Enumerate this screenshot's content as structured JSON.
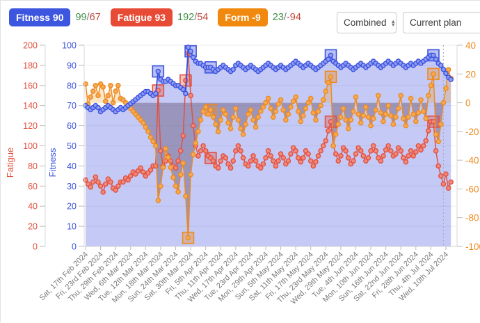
{
  "header": {
    "badges": [
      {
        "label": "Fitness 90",
        "color": "#3d56e0",
        "range_max": "99",
        "range_sep": "/",
        "range_min": "67"
      },
      {
        "label": "Fatigue 93",
        "color": "#e84b35",
        "range_max": "192",
        "range_sep": "/",
        "range_min": "54"
      },
      {
        "label": "Form -9",
        "color": "#f0890e",
        "range_max": "23",
        "range_sep": "/",
        "range_min": "-94"
      }
    ],
    "combined_select": "Combined",
    "plan_select": "Current plan"
  },
  "chart_data": {
    "type": "line",
    "title": "",
    "x_label_step": 6,
    "x_labels": [
      "Sat, 17th Feb 2024",
      "Fri, 23rd Feb 2024",
      "Thu, 29th Feb 2024",
      "Wed, 6th Mar 2024",
      "Tue, 12th Mar 2024",
      "Mon, 18th Mar 2024",
      "Sun, 24th Mar 2024",
      "Sat, 30th Mar 2024",
      "Fri, 5th Apr 2024",
      "Thu, 11th Apr 2024",
      "Wed, 17th Apr 2024",
      "Tue, 23rd Apr 2024",
      "Mon, 29th Apr 2024",
      "Sun, 5th May 2024",
      "Sat, 11th May 2024",
      "Fri, 17th May 2024",
      "Thu, 23rd May 2024",
      "Wed, 29th May 2024",
      "Tue, 4th Jun 2024",
      "Mon, 10th Jun 2024",
      "Sun, 16th Jun 2024",
      "Sat, 22nd Jun 2024",
      "Fri, 28th Jun 2024",
      "Thu, 4th Jul 2024",
      "Wed, 10th Jul 2024"
    ],
    "axes": {
      "fatigue": {
        "title": "Fatigue",
        "min": 0,
        "max": 200,
        "tick_step": 20,
        "color": "#e2503f",
        "position": "outer-left"
      },
      "fitness": {
        "title": "Fitness",
        "min": 0,
        "max": 100,
        "tick_step": 10,
        "color": "#3b52e0",
        "position": "left"
      },
      "form": {
        "title": "",
        "min": -100,
        "max": 40,
        "tick_step": 20,
        "color": "#ee8a1f",
        "position": "right"
      }
    },
    "grid": true,
    "today_index": 143,
    "fills": {
      "fitness_area": "rgba(86,103,226,0.35)",
      "form_positive": "rgba(243,165,49,0.28)",
      "form_negative": "rgba(85,62,96,0.38)"
    },
    "series": [
      {
        "id": "fitness",
        "name": "Fitness",
        "axis": "fitness",
        "color": "#3b52e0",
        "marker_fill": "#8f9cf0",
        "values": [
          70,
          69,
          68,
          69,
          70,
          69,
          67,
          68,
          69,
          70,
          69,
          68,
          67,
          68,
          69,
          68,
          69,
          70,
          71,
          72,
          73,
          74,
          75,
          76,
          77,
          77,
          76,
          75,
          76,
          87,
          83,
          82,
          82,
          83,
          82,
          81,
          80,
          80,
          79,
          78,
          76,
          99,
          97,
          94,
          92,
          91,
          91,
          90,
          89,
          89,
          89,
          88,
          87,
          88,
          89,
          90,
          89,
          88,
          87,
          88,
          90,
          91,
          90,
          89,
          88,
          89,
          90,
          89,
          88,
          87,
          88,
          89,
          90,
          91,
          90,
          89,
          88,
          89,
          90,
          89,
          88,
          89,
          90,
          91,
          92,
          91,
          90,
          89,
          90,
          91,
          90,
          89,
          88,
          89,
          90,
          91,
          92,
          93,
          95,
          92,
          91,
          90,
          89,
          90,
          91,
          90,
          89,
          88,
          89,
          90,
          91,
          90,
          89,
          90,
          91,
          92,
          91,
          90,
          89,
          90,
          91,
          92,
          91,
          90,
          91,
          92,
          91,
          90,
          89,
          90,
          91,
          90,
          91,
          92,
          91,
          92,
          93,
          94,
          95,
          95,
          93,
          91,
          90,
          88,
          86,
          84,
          83
        ]
      },
      {
        "id": "fatigue",
        "name": "Fatigue",
        "axis": "fatigue",
        "color": "#e2503f",
        "marker_fill": "#ef8a7c",
        "values": [
          66,
          62,
          59,
          64,
          69,
          64,
          60,
          54,
          62,
          67,
          64,
          58,
          56,
          60,
          64,
          64,
          68,
          66,
          70,
          74,
          72,
          75,
          78,
          74,
          70,
          73,
          76,
          80,
          80,
          155,
          95,
          80,
          85,
          90,
          85,
          80,
          78,
          85,
          95,
          110,
          165,
          192,
          150,
          120,
          100,
          90,
          95,
          100,
          95,
          90,
          88,
          85,
          80,
          78,
          85,
          90,
          88,
          82,
          78,
          85,
          95,
          100,
          95,
          88,
          82,
          80,
          85,
          90,
          85,
          80,
          78,
          82,
          88,
          95,
          90,
          85,
          80,
          85,
          92,
          88,
          82,
          85,
          92,
          98,
          95,
          88,
          84,
          88,
          95,
          92,
          85,
          80,
          84,
          90,
          95,
          100,
          105,
          115,
          124,
          100,
          92,
          85,
          90,
          98,
          95,
          88,
          82,
          85,
          92,
          98,
          95,
          90,
          85,
          88,
          95,
          100,
          95,
          88,
          85,
          90,
          96,
          100,
          95,
          90,
          92,
          98,
          95,
          88,
          84,
          90,
          95,
          90,
          94,
          100,
          96,
          100,
          105,
          115,
          124,
          124,
          95,
          80,
          70,
          62,
          72,
          58,
          64
        ]
      },
      {
        "id": "form",
        "name": "Form",
        "axis": "form",
        "color": "#ee8a1f",
        "marker_fill": "#f5aa56",
        "values": [
          13,
          -1,
          4,
          8,
          12,
          5,
          13,
          11,
          1,
          5,
          12,
          0,
          8,
          12,
          3,
          2,
          0,
          -2,
          -4,
          -6,
          -8,
          -10,
          -12,
          -14,
          -17,
          -20,
          -24,
          -27,
          -30,
          -68,
          -58,
          -45,
          -32,
          -38,
          -45,
          -52,
          -58,
          -62,
          -50,
          -42,
          -65,
          -94,
          -50,
          -36,
          -28,
          -20,
          -12,
          -6,
          -3,
          -8,
          -5,
          -10,
          -15,
          -20,
          -12,
          -5,
          -8,
          -14,
          -18,
          -10,
          -4,
          -12,
          -18,
          -22,
          -15,
          -8,
          -5,
          -12,
          -17,
          -10,
          -6,
          -3,
          0,
          3,
          -4,
          -10,
          -6,
          -1,
          2,
          -5,
          -12,
          -8,
          -3,
          1,
          4,
          -6,
          -13,
          -9,
          -4,
          0,
          3,
          -7,
          -12,
          -6,
          -2,
          2,
          8,
          14,
          18,
          -30,
          -22,
          -15,
          -10,
          -4,
          -12,
          -18,
          -12,
          -6,
          4,
          -8,
          -14,
          -9,
          -3,
          -10,
          -16,
          -11,
          -5,
          5,
          -7,
          -13,
          -8,
          -2,
          -9,
          -15,
          -10,
          -4,
          5,
          -11,
          -16,
          -10,
          3,
          -8,
          -13,
          -7,
          2,
          -6,
          -11,
          5,
          12,
          20,
          -22,
          -27,
          -15,
          0,
          10,
          23,
          17
        ]
      }
    ],
    "squares": [
      {
        "series": "fitness",
        "day": 29
      },
      {
        "series": "fatigue",
        "day": 29
      },
      {
        "series": "fitness",
        "day": 42
      },
      {
        "series": "fatigue",
        "day": 40
      },
      {
        "series": "form",
        "day": 41
      },
      {
        "series": "fitness",
        "day": 50
      },
      {
        "series": "fatigue",
        "day": 50
      },
      {
        "series": "form",
        "day": 50
      },
      {
        "series": "fitness",
        "day": 98
      },
      {
        "series": "fatigue",
        "day": 98
      },
      {
        "series": "form",
        "day": 98
      },
      {
        "series": "fitness",
        "day": 139
      },
      {
        "series": "fatigue",
        "day": 139
      },
      {
        "series": "form",
        "day": 139
      }
    ]
  }
}
